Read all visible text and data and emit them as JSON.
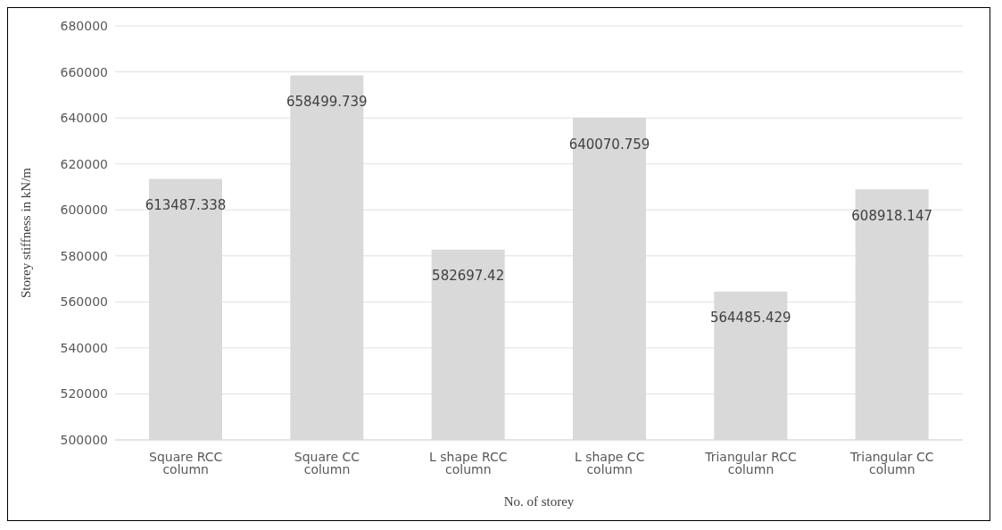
{
  "chart_data": {
    "type": "bar",
    "xlabel": "No. of storey",
    "ylabel": "Storey stiffness in kN/m",
    "categories": [
      "Square RCC column",
      "Square CC column",
      "L shape RCC column",
      "L shape CC column",
      "Triangular RCC column",
      "Triangular CC column"
    ],
    "values": [
      613487.338,
      658499.739,
      582697.42,
      640070.759,
      564485.429,
      608918.147
    ],
    "color": "#d9d9d9",
    "ylim": [
      500000,
      680000
    ],
    "yticks": [
      500000,
      520000,
      540000,
      560000,
      580000,
      600000,
      620000,
      640000,
      660000,
      680000
    ],
    "grid": "y",
    "data_labels": true
  }
}
